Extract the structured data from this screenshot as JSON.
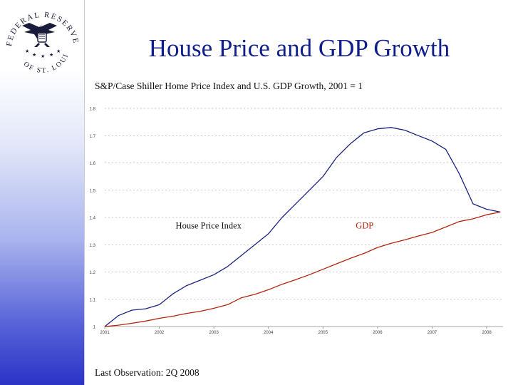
{
  "title": "House Price and GDP Growth",
  "logo": {
    "text": "FEDERAL RESERVE BANK OF ST. LOUIS"
  },
  "footer": "Last Observation: 2Q 2008",
  "colors": {
    "title": "#101e8c",
    "hpi": "#1a237e",
    "gdp": "#b3250e",
    "grid": "#b8b8b8"
  },
  "chart_data": {
    "type": "line",
    "title": "S&P/Case Shiller Home Price Index and U.S. GDP Growth, 2001 = 1",
    "xlabel": "",
    "ylabel": "",
    "xlim": [
      2001.0,
      2008.3
    ],
    "ylim": [
      1.0,
      1.8
    ],
    "grid": true,
    "x_ticks": [
      "2001",
      "2002",
      "2003",
      "2004",
      "2005",
      "2006",
      "2007",
      "2008"
    ],
    "y_ticks": [
      "1",
      "1.1",
      "1.2",
      "1.3",
      "1.4",
      "1.5",
      "1.6",
      "1.7",
      "1.8"
    ],
    "series": [
      {
        "name": "House Price Index",
        "color": "#1a237e",
        "x": [
          2001.0,
          2001.25,
          2001.5,
          2001.75,
          2002.0,
          2002.25,
          2002.5,
          2002.75,
          2003.0,
          2003.25,
          2003.5,
          2003.75,
          2004.0,
          2004.25,
          2004.5,
          2004.75,
          2005.0,
          2005.25,
          2005.5,
          2005.75,
          2006.0,
          2006.25,
          2006.5,
          2006.75,
          2007.0,
          2007.25,
          2007.5,
          2007.75,
          2008.0,
          2008.25
        ],
        "values": [
          1.0,
          1.04,
          1.06,
          1.065,
          1.08,
          1.12,
          1.15,
          1.17,
          1.19,
          1.22,
          1.26,
          1.3,
          1.34,
          1.4,
          1.45,
          1.5,
          1.55,
          1.62,
          1.67,
          1.71,
          1.725,
          1.73,
          1.72,
          1.7,
          1.68,
          1.65,
          1.56,
          1.45,
          1.43,
          1.42
        ]
      },
      {
        "name": "GDP",
        "color": "#b3250e",
        "x": [
          2001.0,
          2001.25,
          2001.5,
          2001.75,
          2002.0,
          2002.25,
          2002.5,
          2002.75,
          2003.0,
          2003.25,
          2003.5,
          2003.75,
          2004.0,
          2004.25,
          2004.5,
          2004.75,
          2005.0,
          2005.25,
          2005.5,
          2005.75,
          2006.0,
          2006.25,
          2006.5,
          2006.75,
          2007.0,
          2007.25,
          2007.5,
          2007.75,
          2008.0,
          2008.25
        ],
        "values": [
          1.0,
          1.005,
          1.012,
          1.02,
          1.03,
          1.038,
          1.048,
          1.056,
          1.067,
          1.08,
          1.105,
          1.118,
          1.135,
          1.155,
          1.172,
          1.19,
          1.21,
          1.23,
          1.25,
          1.268,
          1.29,
          1.305,
          1.318,
          1.332,
          1.345,
          1.365,
          1.385,
          1.395,
          1.41,
          1.42
        ]
      }
    ],
    "annotations": [
      {
        "text": "House Price Index",
        "series": "House Price Index",
        "at_x": 2002.3,
        "at_y": 1.36
      },
      {
        "text": "GDP",
        "series": "GDP",
        "at_x": 2005.6,
        "at_y": 1.36
      }
    ]
  }
}
